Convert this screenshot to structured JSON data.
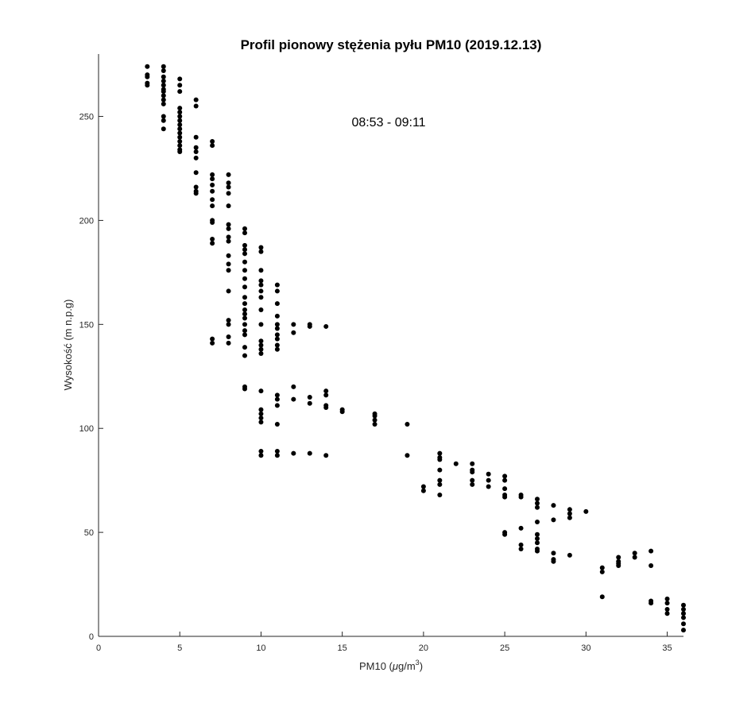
{
  "chart_data": {
    "type": "scatter",
    "title": "Profil pionowy stężenia pyłu PM10 (2019.12.13)",
    "annotation": "08:53 - 09:11",
    "xlabel_main": "PM10 (",
    "xlabel_mu": "μ",
    "xlabel_unit": "g/m",
    "xlabel_sup": "3",
    "xlabel_close": ")",
    "ylabel": "Wysokość (m n.p.g)",
    "xlim": [
      0,
      36
    ],
    "ylim": [
      0,
      280
    ],
    "xticks": [
      0,
      5,
      10,
      15,
      20,
      25,
      30,
      35
    ],
    "yticks": [
      0,
      50,
      100,
      150,
      200,
      250
    ],
    "marker_color": "#000000",
    "grid": false,
    "legend": false,
    "points": [
      [
        3,
        274
      ],
      [
        3,
        270
      ],
      [
        3,
        269
      ],
      [
        3,
        266
      ],
      [
        3,
        265
      ],
      [
        4,
        274
      ],
      [
        4,
        272
      ],
      [
        4,
        269
      ],
      [
        4,
        267
      ],
      [
        4,
        265
      ],
      [
        4,
        263
      ],
      [
        4,
        262
      ],
      [
        4,
        260
      ],
      [
        4,
        258
      ],
      [
        4,
        256
      ],
      [
        4,
        250
      ],
      [
        4,
        248
      ],
      [
        4,
        244
      ],
      [
        5,
        268
      ],
      [
        5,
        265
      ],
      [
        5,
        262
      ],
      [
        5,
        254
      ],
      [
        5,
        252
      ],
      [
        5,
        250
      ],
      [
        5,
        248
      ],
      [
        5,
        246
      ],
      [
        5,
        244
      ],
      [
        5,
        242
      ],
      [
        5,
        240
      ],
      [
        5,
        238
      ],
      [
        5,
        236
      ],
      [
        5,
        234
      ],
      [
        5,
        233
      ],
      [
        6,
        258
      ],
      [
        6,
        255
      ],
      [
        6,
        240
      ],
      [
        6,
        235
      ],
      [
        6,
        233
      ],
      [
        6,
        230
      ],
      [
        6,
        223
      ],
      [
        6,
        216
      ],
      [
        6,
        214
      ],
      [
        6,
        213
      ],
      [
        7,
        238
      ],
      [
        7,
        236
      ],
      [
        7,
        222
      ],
      [
        7,
        220
      ],
      [
        7,
        217
      ],
      [
        7,
        214
      ],
      [
        7,
        210
      ],
      [
        7,
        207
      ],
      [
        7,
        200
      ],
      [
        7,
        199
      ],
      [
        7,
        191
      ],
      [
        7,
        189
      ],
      [
        7,
        143
      ],
      [
        7,
        141
      ],
      [
        8,
        222
      ],
      [
        8,
        218
      ],
      [
        8,
        216
      ],
      [
        8,
        213
      ],
      [
        8,
        207
      ],
      [
        8,
        198
      ],
      [
        8,
        196
      ],
      [
        8,
        192
      ],
      [
        8,
        190
      ],
      [
        8,
        183
      ],
      [
        8,
        179
      ],
      [
        8,
        176
      ],
      [
        8,
        166
      ],
      [
        8,
        152
      ],
      [
        8,
        150
      ],
      [
        8,
        144
      ],
      [
        8,
        141
      ],
      [
        9,
        196
      ],
      [
        9,
        194
      ],
      [
        9,
        188
      ],
      [
        9,
        186
      ],
      [
        9,
        184
      ],
      [
        9,
        180
      ],
      [
        9,
        176
      ],
      [
        9,
        172
      ],
      [
        9,
        168
      ],
      [
        9,
        163
      ],
      [
        9,
        160
      ],
      [
        9,
        157
      ],
      [
        9,
        155
      ],
      [
        9,
        153
      ],
      [
        9,
        150
      ],
      [
        9,
        147
      ],
      [
        9,
        145
      ],
      [
        9,
        139
      ],
      [
        9,
        135
      ],
      [
        9,
        120
      ],
      [
        9,
        119
      ],
      [
        10,
        187
      ],
      [
        10,
        185
      ],
      [
        10,
        176
      ],
      [
        10,
        171
      ],
      [
        10,
        169
      ],
      [
        10,
        166
      ],
      [
        10,
        163
      ],
      [
        10,
        157
      ],
      [
        10,
        150
      ],
      [
        10,
        142
      ],
      [
        10,
        140
      ],
      [
        10,
        138
      ],
      [
        10,
        136
      ],
      [
        10,
        118
      ],
      [
        10,
        109
      ],
      [
        10,
        107
      ],
      [
        10,
        105
      ],
      [
        10,
        103
      ],
      [
        10,
        89
      ],
      [
        10,
        87
      ],
      [
        11,
        169
      ],
      [
        11,
        166
      ],
      [
        11,
        160
      ],
      [
        11,
        154
      ],
      [
        11,
        150
      ],
      [
        11,
        148
      ],
      [
        11,
        145
      ],
      [
        11,
        143
      ],
      [
        11,
        140
      ],
      [
        11,
        138
      ],
      [
        11,
        116
      ],
      [
        11,
        114
      ],
      [
        11,
        111
      ],
      [
        11,
        102
      ],
      [
        11,
        89
      ],
      [
        11,
        87
      ],
      [
        12,
        150
      ],
      [
        12,
        146
      ],
      [
        12,
        120
      ],
      [
        12,
        114
      ],
      [
        12,
        88
      ],
      [
        13,
        150
      ],
      [
        13,
        149
      ],
      [
        13,
        115
      ],
      [
        13,
        112
      ],
      [
        13,
        88
      ],
      [
        14,
        149
      ],
      [
        14,
        118
      ],
      [
        14,
        116
      ],
      [
        14,
        111
      ],
      [
        14,
        110
      ],
      [
        14,
        87
      ],
      [
        15,
        109
      ],
      [
        15,
        108
      ],
      [
        17,
        107
      ],
      [
        17,
        106
      ],
      [
        17,
        104
      ],
      [
        17,
        102
      ],
      [
        19,
        102
      ],
      [
        19,
        87
      ],
      [
        20,
        72
      ],
      [
        20,
        70
      ],
      [
        21,
        88
      ],
      [
        21,
        86
      ],
      [
        21,
        85
      ],
      [
        21,
        80
      ],
      [
        21,
        75
      ],
      [
        21,
        73
      ],
      [
        21,
        68
      ],
      [
        22,
        83
      ],
      [
        23,
        83
      ],
      [
        23,
        80
      ],
      [
        23,
        79
      ],
      [
        23,
        75
      ],
      [
        23,
        73
      ],
      [
        24,
        78
      ],
      [
        24,
        75
      ],
      [
        24,
        72
      ],
      [
        25,
        77
      ],
      [
        25,
        75
      ],
      [
        25,
        71
      ],
      [
        25,
        68
      ],
      [
        25,
        67
      ],
      [
        25,
        50
      ],
      [
        25,
        49
      ],
      [
        26,
        68
      ],
      [
        26,
        67
      ],
      [
        26,
        52
      ],
      [
        26,
        44
      ],
      [
        26,
        42
      ],
      [
        27,
        66
      ],
      [
        27,
        64
      ],
      [
        27,
        62
      ],
      [
        27,
        55
      ],
      [
        27,
        49
      ],
      [
        27,
        47
      ],
      [
        27,
        45
      ],
      [
        27,
        42
      ],
      [
        27,
        41
      ],
      [
        28,
        63
      ],
      [
        28,
        56
      ],
      [
        28,
        40
      ],
      [
        28,
        37
      ],
      [
        28,
        36
      ],
      [
        29,
        61
      ],
      [
        29,
        59
      ],
      [
        29,
        57
      ],
      [
        29,
        39
      ],
      [
        30,
        60
      ],
      [
        31,
        33
      ],
      [
        31,
        31
      ],
      [
        31,
        19
      ],
      [
        32,
        38
      ],
      [
        32,
        36
      ],
      [
        32,
        35
      ],
      [
        32,
        34
      ],
      [
        33,
        40
      ],
      [
        33,
        38
      ],
      [
        34,
        41
      ],
      [
        34,
        34
      ],
      [
        34,
        17
      ],
      [
        34,
        16
      ],
      [
        35,
        18
      ],
      [
        35,
        16
      ],
      [
        35,
        13
      ],
      [
        35,
        11
      ],
      [
        36,
        15
      ],
      [
        36,
        13
      ],
      [
        36,
        11
      ],
      [
        36,
        9
      ],
      [
        36,
        6
      ],
      [
        36,
        3
      ]
    ]
  }
}
